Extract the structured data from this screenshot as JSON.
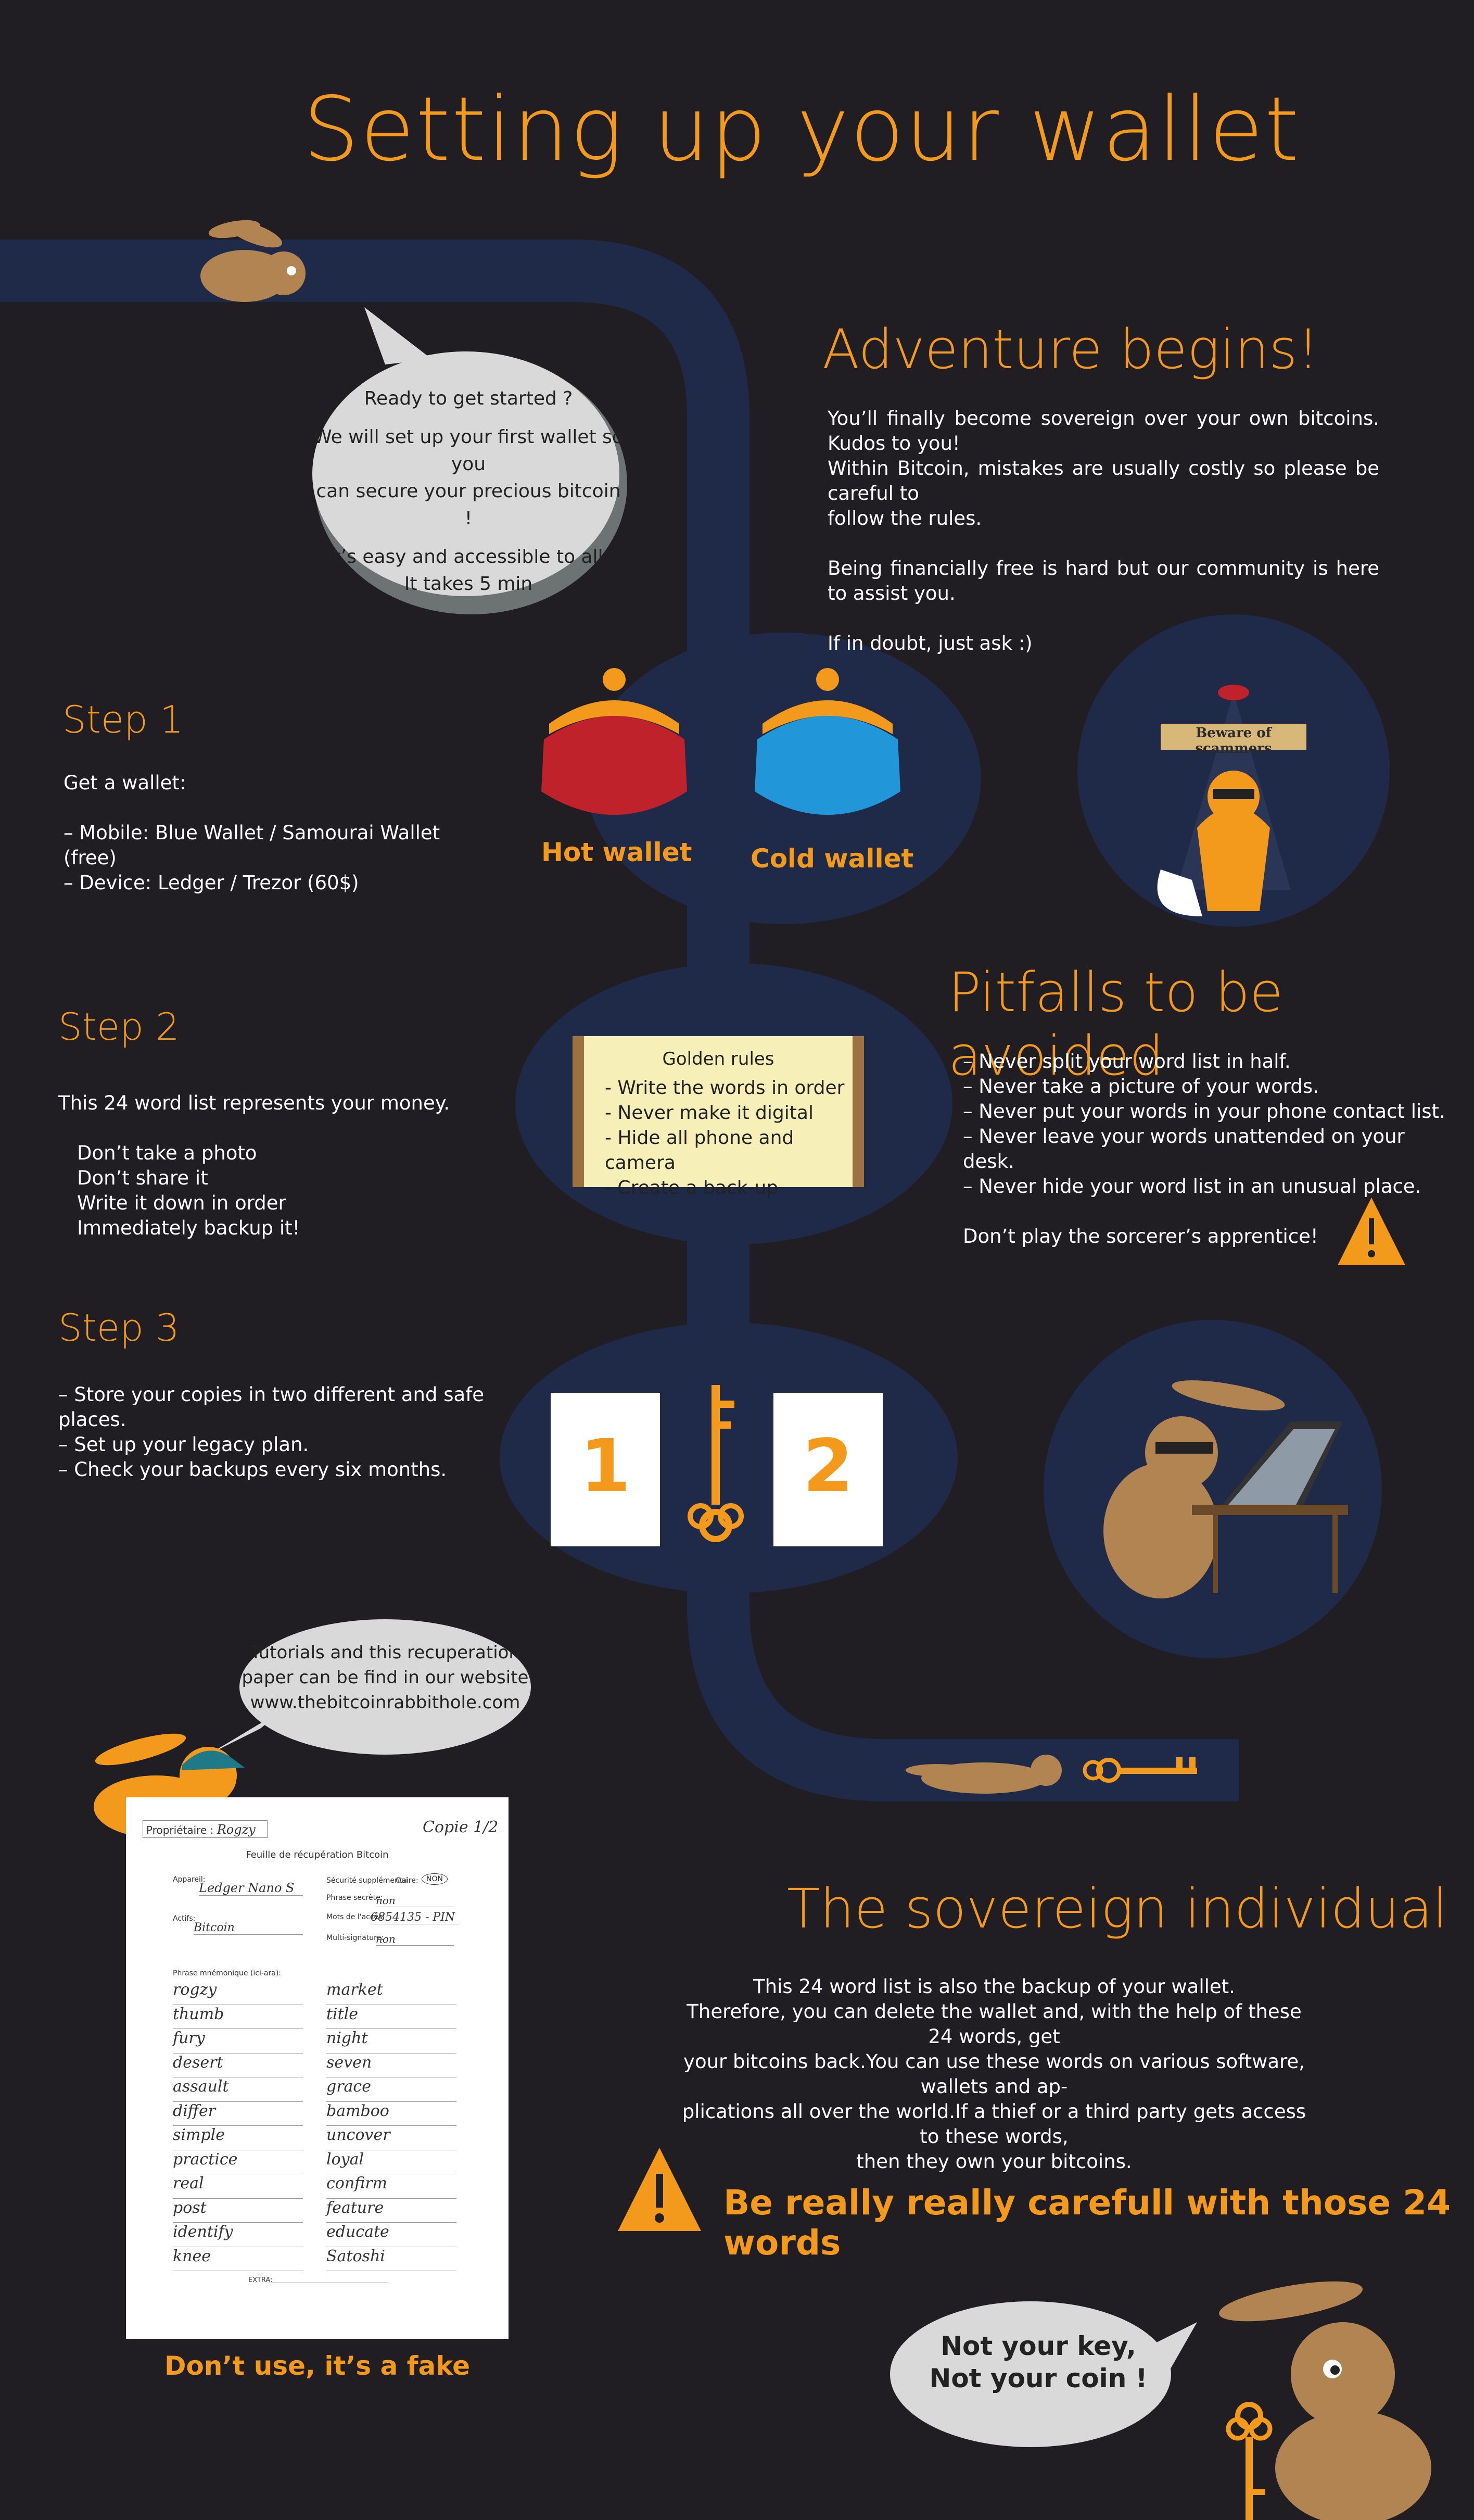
{
  "colors": {
    "background": "#201e22",
    "accent": "#f39a1d",
    "path": "#1f2a48",
    "bubble": "#d9d9d9"
  },
  "title": "Setting up your wallet",
  "adventure": {
    "heading": "Adventure begins!",
    "lines": [
      "You’ll finally become sovereign over your own bitcoins. Kudos to you!",
      "Within Bitcoin, mistakes are usually costly so please be careful to",
      "follow the rules.",
      "Being financially free is hard but our community is here to assist you.",
      "If in doubt, just ask  :)"
    ]
  },
  "bubble_start": {
    "lines": [
      "Ready to get started ?",
      "We will set up your first wallet so you",
      "can secure your precious bitcoin !",
      "It’s easy and accessible to all.",
      "It takes 5 min"
    ]
  },
  "step1": {
    "heading": "Step 1",
    "intro": "Get a wallet:",
    "items": [
      "– Mobile: Blue Wallet / Samourai Wallet (free)",
      "– Device: Ledger / Trezor (60$)"
    ]
  },
  "wallets": {
    "hot": "Hot wallet",
    "cold": "Cold wallet"
  },
  "scammer_sign": "Beware of scammers",
  "step2": {
    "heading": "Step 2",
    "intro": "This 24 word list represents your money.",
    "items": [
      "Don’t take a photo",
      "Don’t share it",
      "Write it down in order",
      "Immediately backup it!"
    ]
  },
  "golden_rules": {
    "title": "Golden rules",
    "items": [
      "- Write the words in order",
      "- Never make it digital",
      "- Hide all phone and camera",
      "- Create a back-up"
    ]
  },
  "pitfalls": {
    "heading": "Pitfalls to be avoided",
    "items": [
      "– Never split your word list in half.",
      "– Never take a picture of your words.",
      "– Never put your words in your phone contact list.",
      "– Never leave your words unattended on your desk.",
      "– Never hide your word list in an unusual place."
    ],
    "footer": "Don’t play the sorcerer’s apprentice!"
  },
  "step3": {
    "heading": "Step 3",
    "items": [
      "– Store your copies in two different and safe places.",
      "– Set up your legacy plan.",
      "– Check your backups every six months."
    ]
  },
  "copies": {
    "one": "1",
    "two": "2"
  },
  "bubble_tutorials": {
    "lines": [
      "Tutorials and this recuperation",
      "paper can be find in our website",
      "www.thebitcoinrabbithole.com"
    ]
  },
  "sovereign": {
    "heading": "The sovereign individual",
    "lines": [
      "This 24 word list is also the backup of your wallet.",
      "Therefore, you can delete the wallet and, with the help of these 24 words, get",
      "your bitcoins back.You can use these words on various software, wallets and ap-",
      "plications all over the world.If a thief or a third party gets access to these words,",
      "then they own your bitcoins."
    ]
  },
  "warning": "Be really really carefull with those 24 words",
  "bubble_key": {
    "lines": [
      "Not your key,",
      "Not your coin !"
    ]
  },
  "fake_label": "Don’t use, it’s a fake",
  "sheet": {
    "owner_label": "Propriétaire :",
    "owner": "Rogzy",
    "copy": "Copie 1/2",
    "title": "Feuille de récupération Bitcoin",
    "device_label": "Appareil:",
    "device": "Ledger Nano S",
    "asset_label": "Actifs:",
    "asset": "Bitcoin",
    "security_label": "Sécurité supplémentaire:",
    "yes": "Oui",
    "no": "NON",
    "passphrase_label": "Phrase secrète:",
    "passphrase": "non",
    "pin_label": "Mots de l'accès:",
    "pin": "6854135 - PIN",
    "multisig_label": "Multi-signature:",
    "multisig": "non",
    "mnemonic_label": "Phrase mnémonique (ici-ara):",
    "words_left": [
      "rogzy",
      "thumb",
      "fury",
      "desert",
      "assault",
      "differ",
      "simple",
      "practice",
      "real",
      "post",
      "identify",
      "knee"
    ],
    "words_right": [
      "market",
      "title",
      "night",
      "seven",
      "grace",
      "bamboo",
      "uncover",
      "loyal",
      "confirm",
      "feature",
      "educate",
      "Satoshi"
    ],
    "extra_label": "EXTRA:"
  }
}
